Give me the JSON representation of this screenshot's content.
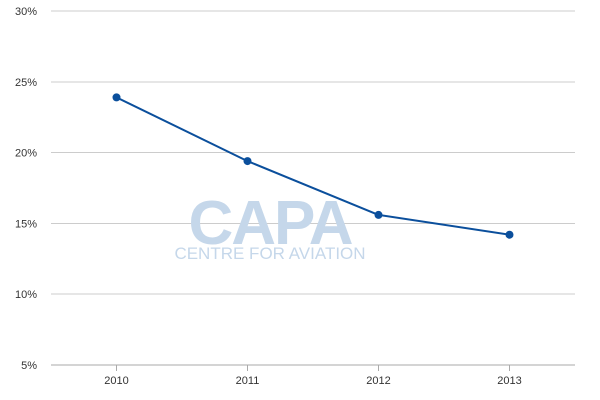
{
  "watermark": {
    "logo": "CAPA",
    "subtitle": "CENTRE FOR AVIATION"
  },
  "colors": {
    "line": "#0b4f9c",
    "grid": "#cccccc",
    "axis": "#aaaaaa",
    "watermark": "#c5d7ea"
  },
  "chart_data": {
    "type": "line",
    "title": "",
    "xlabel": "",
    "ylabel": "",
    "categories": [
      "2010",
      "2011",
      "2012",
      "2013"
    ],
    "series": [
      {
        "values": [
          23.9,
          19.4,
          15.6,
          14.2
        ]
      }
    ],
    "ylim": [
      5,
      30
    ],
    "yticks": [
      "5%",
      "10%",
      "15%",
      "20%",
      "25%",
      "30%"
    ],
    "grid": true,
    "legend": "none"
  }
}
